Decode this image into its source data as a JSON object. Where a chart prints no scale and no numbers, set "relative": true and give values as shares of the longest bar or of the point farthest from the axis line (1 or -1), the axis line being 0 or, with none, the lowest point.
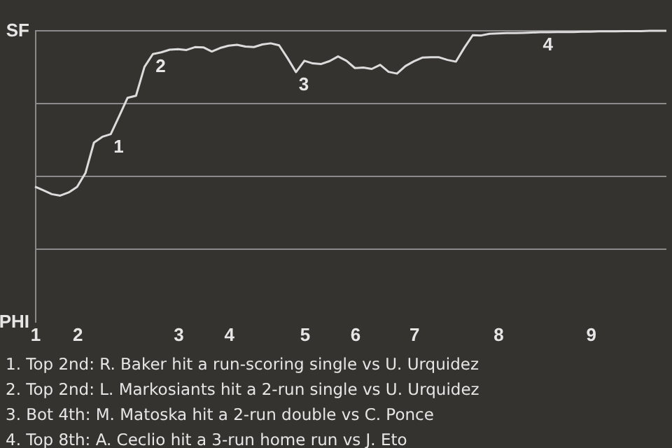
{
  "chart_data": {
    "type": "line",
    "relative": true,
    "categories": [
      "1",
      null,
      null,
      null,
      null,
      "2",
      null,
      null,
      null,
      null,
      null,
      null,
      null,
      null,
      null,
      null,
      null,
      "3",
      null,
      null,
      null,
      null,
      null,
      "4",
      null,
      null,
      null,
      null,
      null,
      null,
      null,
      null,
      "5",
      null,
      null,
      null,
      null,
      null,
      "6",
      null,
      null,
      null,
      null,
      null,
      null,
      "7",
      null,
      null,
      null,
      null,
      null,
      null,
      null,
      null,
      null,
      "8",
      null,
      null,
      null,
      null,
      null,
      null,
      null,
      null,
      null,
      null,
      "9",
      null,
      null,
      null,
      null,
      null,
      null,
      null,
      null,
      null
    ],
    "values": [
      0.465,
      0.452,
      0.439,
      0.434,
      0.445,
      0.464,
      0.512,
      0.616,
      0.636,
      0.645,
      0.707,
      0.77,
      0.777,
      0.876,
      0.92,
      0.926,
      0.935,
      0.937,
      0.934,
      0.944,
      0.943,
      0.929,
      0.941,
      0.949,
      0.952,
      0.946,
      0.944,
      0.953,
      0.957,
      0.95,
      0.906,
      0.858,
      0.897,
      0.888,
      0.886,
      0.896,
      0.912,
      0.897,
      0.872,
      0.874,
      0.869,
      0.883,
      0.859,
      0.853,
      0.879,
      0.895,
      0.908,
      0.909,
      0.909,
      0.9,
      0.894,
      0.942,
      0.985,
      0.984,
      0.99,
      0.991,
      0.992,
      0.992,
      0.993,
      0.994,
      0.995,
      0.995,
      0.996,
      0.996,
      0.996,
      0.997,
      0.997,
      0.998,
      0.998,
      0.998,
      0.999,
      0.999,
      0.999,
      1.0,
      1.0,
      1.0
    ],
    "color": "#dcdcdc",
    "ref_lines": [
      {
        "axis": "y",
        "value": 0.25,
        "color": "#8a8a8a"
      },
      {
        "axis": "y",
        "value": 0.5,
        "color": "#8a8a8a"
      },
      {
        "axis": "y",
        "value": 0.75,
        "color": "#8a8a8a"
      },
      {
        "axis": "y",
        "value": 1,
        "color": "#8a8a8a"
      }
    ],
    "annotations": [
      "SF",
      "PHI",
      {
        "text": "1",
        "y": 0.645
      },
      {
        "text": "2",
        "y": 0.92
      },
      {
        "text": "3",
        "y": 0.858
      },
      {
        "text": "4",
        "y": 0.995
      },
      "1. Top 2nd: R. Baker hit a run-scoring single vs U. Urquidez",
      "2. Top 2nd: L. Markosiants hit a 2-run single vs U. Urquidez",
      "3. Bot 4th: M. Matoska hit a 2-run double vs C. Ponce",
      "4. Top 8th: A. Ceclio hit a 3-run home run vs J. Eto"
    ]
  }
}
